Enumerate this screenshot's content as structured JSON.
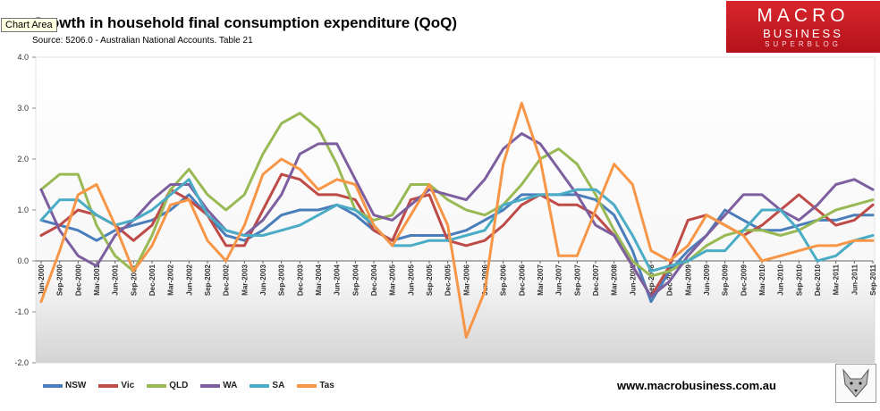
{
  "tooltip": "Chart Area",
  "header": {
    "title": "Growth in household final consumption expenditure (QoQ)",
    "source": "Source: 5206.0 - Australian National Accounts. Table 21"
  },
  "logo": {
    "line1": "MACRO",
    "line2": "BUSINESS",
    "line3": "SUPERBLOG"
  },
  "website": "www.macrobusiness.com.au",
  "chart_data": {
    "type": "line",
    "title": "Growth in household final consumption expenditure (QoQ)",
    "xlabel": "",
    "ylabel": "",
    "ylim": [
      -2.0,
      4.0
    ],
    "y_ticks": [
      "4.0",
      "3.0",
      "2.0",
      "1.0",
      "0.0",
      "-1.0",
      "-2.0"
    ],
    "y_tick_values": [
      4,
      3,
      2,
      1,
      0,
      -1,
      -2
    ],
    "categories": [
      "Jun-2000",
      "Sep-2000",
      "Dec-2000",
      "Mar-2001",
      "Jun-2001",
      "Sep-2001",
      "Dec-2001",
      "Mar-2002",
      "Jun-2002",
      "Sep-2002",
      "Dec-2002",
      "Mar-2003",
      "Jun-2003",
      "Sep-2003",
      "Dec-2003",
      "Mar-2004",
      "Jun-2004",
      "Sep-2004",
      "Dec-2004",
      "Mar-2005",
      "Jun-2005",
      "Sep-2005",
      "Dec-2005",
      "Mar-2006",
      "Jun-2006",
      "Sep-2006",
      "Dec-2006",
      "Mar-2007",
      "Jun-2007",
      "Sep-2007",
      "Dec-2007",
      "Mar-2008",
      "Jun-2008",
      "Sep-2008",
      "Dec-2008",
      "Mar-2009",
      "Jun-2009",
      "Sep-2009",
      "Dec-2009",
      "Mar-2010",
      "Jun-2010",
      "Sep-2010",
      "Dec-2010",
      "Mar-2011",
      "Jun-2011",
      "Sep-2011"
    ],
    "label_every": 1,
    "series": [
      {
        "name": "NSW",
        "color": "#4a7ebb",
        "values": [
          0.8,
          0.7,
          0.6,
          0.4,
          0.6,
          0.7,
          0.8,
          1.0,
          1.3,
          0.9,
          0.5,
          0.4,
          0.6,
          0.9,
          1.0,
          1.0,
          1.1,
          0.9,
          0.6,
          0.4,
          0.5,
          0.5,
          0.5,
          0.6,
          0.8,
          1.0,
          1.3,
          1.3,
          1.3,
          1.3,
          1.2,
          0.9,
          0.2,
          -0.8,
          -0.2,
          0.2,
          0.5,
          1.0,
          0.8,
          0.6,
          0.6,
          0.7,
          0.8,
          0.8,
          0.9,
          0.9
        ]
      },
      {
        "name": "Vic",
        "color": "#be4b48",
        "values": [
          0.5,
          0.7,
          1.0,
          0.9,
          0.7,
          0.4,
          0.7,
          1.4,
          1.2,
          0.9,
          0.3,
          0.3,
          1.0,
          1.7,
          1.6,
          1.3,
          1.3,
          1.2,
          0.6,
          0.4,
          1.2,
          1.3,
          0.4,
          0.3,
          0.4,
          0.7,
          1.1,
          1.3,
          1.1,
          1.1,
          0.9,
          0.5,
          -0.1,
          -0.7,
          -0.1,
          0.8,
          0.9,
          0.7,
          0.5,
          0.7,
          1.0,
          1.3,
          1.0,
          0.7,
          0.8,
          1.1
        ]
      },
      {
        "name": "QLD",
        "color": "#98b954",
        "values": [
          1.4,
          1.7,
          1.7,
          0.7,
          0.1,
          -0.2,
          0.5,
          1.4,
          1.8,
          1.3,
          1.0,
          1.3,
          2.1,
          2.7,
          2.9,
          2.6,
          1.9,
          1.0,
          0.8,
          0.9,
          1.5,
          1.5,
          1.2,
          1.0,
          0.9,
          1.1,
          1.5,
          2.0,
          2.2,
          1.9,
          1.3,
          0.6,
          0.0,
          -0.3,
          -0.2,
          0.0,
          0.3,
          0.5,
          0.6,
          0.6,
          0.5,
          0.6,
          0.8,
          1.0,
          1.1,
          1.2
        ]
      },
      {
        "name": "WA",
        "color": "#7d5fa0",
        "values": [
          1.4,
          0.6,
          0.1,
          -0.1,
          0.5,
          0.8,
          1.2,
          1.5,
          1.5,
          1.0,
          0.6,
          0.5,
          0.8,
          1.3,
          2.1,
          2.3,
          2.3,
          1.6,
          0.9,
          0.8,
          1.1,
          1.4,
          1.3,
          1.2,
          1.6,
          2.2,
          2.5,
          2.3,
          1.8,
          1.3,
          0.7,
          0.5,
          -0.1,
          -0.7,
          -0.4,
          0.1,
          0.5,
          0.9,
          1.3,
          1.3,
          1.0,
          0.8,
          1.1,
          1.5,
          1.6,
          1.4
        ]
      },
      {
        "name": "SA",
        "color": "#4aacc5",
        "values": [
          0.8,
          1.2,
          1.2,
          0.9,
          0.7,
          0.8,
          1.0,
          1.3,
          1.6,
          0.9,
          0.6,
          0.5,
          0.5,
          0.6,
          0.7,
          0.9,
          1.1,
          1.0,
          0.7,
          0.3,
          0.3,
          0.4,
          0.4,
          0.5,
          0.6,
          1.1,
          1.2,
          1.3,
          1.3,
          1.4,
          1.4,
          1.1,
          0.5,
          -0.2,
          -0.1,
          0.0,
          0.2,
          0.2,
          0.6,
          1.0,
          1.0,
          0.6,
          0.0,
          0.1,
          0.4,
          0.5
        ]
      },
      {
        "name": "Tas",
        "color": "#f79646",
        "values": [
          -0.8,
          0.2,
          1.3,
          1.5,
          0.7,
          -0.2,
          0.3,
          1.1,
          1.2,
          0.4,
          0.0,
          0.7,
          1.7,
          2.0,
          1.8,
          1.4,
          1.6,
          1.5,
          0.7,
          0.3,
          0.9,
          1.5,
          0.7,
          -1.5,
          -0.6,
          1.9,
          3.1,
          2.0,
          0.1,
          0.1,
          1.0,
          1.9,
          1.5,
          0.2,
          0.0,
          0.3,
          0.9,
          0.7,
          0.5,
          0.0,
          0.1,
          0.2,
          0.3,
          0.3,
          0.4,
          0.4
        ]
      }
    ],
    "legend_position": "bottom-left",
    "grid": false
  }
}
